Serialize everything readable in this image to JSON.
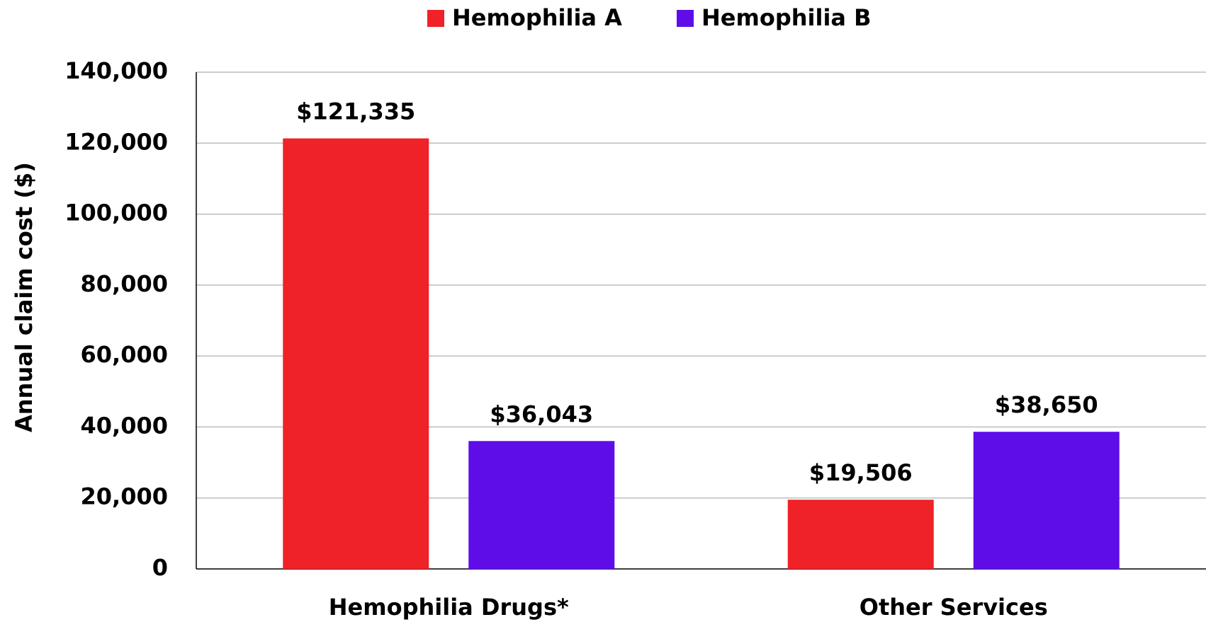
{
  "chart_data": {
    "type": "bar",
    "y_axis_label": "Annual claim cost ($)",
    "categories": [
      "Hemophilia Drugs*",
      "Other Services"
    ],
    "series": [
      {
        "name": "Hemophilia A",
        "color": "#ee2227",
        "values": [
          121335,
          19506
        ],
        "value_labels": [
          "$121,335",
          "$19,506"
        ]
      },
      {
        "name": "Hemophilia B",
        "color": "#5e0de8",
        "values": [
          36043,
          38650
        ],
        "value_labels": [
          "$36,043",
          "$38,650"
        ]
      }
    ],
    "ylim": [
      0,
      140000
    ],
    "yticks": [
      0,
      {
        "value": 20000,
        "label": "20,000"
      },
      {
        "value": 40000,
        "label": "40,000"
      },
      {
        "value": 60000,
        "label": "60,000"
      },
      {
        "value": 80000,
        "label": "80,000"
      },
      {
        "value": 100000,
        "label": "100,000"
      },
      {
        "value": 120000,
        "label": "120,000"
      },
      {
        "value": 140000,
        "label": "140,000"
      }
    ],
    "grid": true,
    "legend": "top"
  }
}
